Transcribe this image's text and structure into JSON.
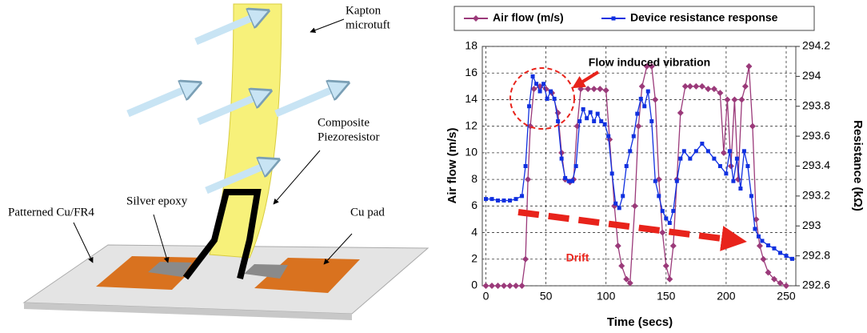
{
  "diagram": {
    "labels": [
      [
        "Kapton",
        "microtuft"
      ],
      [
        "Composite",
        "Piezoresistor"
      ],
      [
        "Patterned Cu/FR4"
      ],
      [
        "Silver epoxy"
      ],
      [
        "Cu pad"
      ]
    ]
  },
  "chart_data": {
    "type": "line",
    "x_label": "Time (secs)",
    "y_label": "Air flow (m/s)",
    "y2_label": "Resistance (kΩ)",
    "annotations": [
      "Flow induced vibration",
      "Drift"
    ],
    "xlim": [
      -3,
      258
    ],
    "xticks": [
      0,
      50,
      100,
      150,
      200,
      250
    ],
    "ylim": [
      0,
      18
    ],
    "yticks": [
      0,
      2,
      4,
      6,
      8,
      10,
      12,
      14,
      16,
      18
    ],
    "y2lim": [
      292.6,
      294.2
    ],
    "y2ticks": [
      292.6,
      292.8,
      293,
      293.2,
      293.4,
      293.6,
      293.8,
      294,
      294.2
    ],
    "grid": true,
    "legend": "top",
    "series": [
      {
        "name": "Air flow (m/s)",
        "color": "#9b3a7a",
        "marker": "diamond",
        "x": [
          0,
          5,
          10,
          15,
          20,
          25,
          30,
          33,
          35,
          37,
          40,
          45,
          50,
          55,
          60,
          63,
          66,
          70,
          73,
          76,
          79,
          85,
          90,
          95,
          100,
          103,
          107,
          110,
          113,
          117,
          120,
          124,
          127,
          130,
          134,
          138,
          141,
          144,
          147,
          150,
          153,
          156,
          159,
          162,
          166,
          170,
          175,
          180,
          185,
          190,
          195,
          198,
          201,
          204,
          207,
          210,
          213,
          216,
          219,
          222,
          225,
          228,
          231,
          235,
          240,
          245,
          250
        ],
        "values": [
          0,
          0,
          0,
          0,
          0,
          0,
          0,
          2,
          8,
          12,
          14.8,
          15,
          14.8,
          14.5,
          13,
          10,
          8,
          7.8,
          8,
          12,
          14.8,
          14.8,
          14.8,
          14.8,
          14.7,
          11,
          6,
          3,
          1.5,
          0.5,
          0.2,
          6,
          12,
          15,
          16.5,
          16.5,
          14,
          8,
          4,
          1.5,
          0.5,
          3,
          8,
          13,
          15,
          15,
          15,
          15,
          14.8,
          14.8,
          14.5,
          10,
          14,
          9,
          14,
          8,
          14,
          15,
          16.5,
          12,
          5,
          3,
          2,
          1,
          0.5,
          0.2,
          0
        ]
      },
      {
        "name": "Device resistance response",
        "color": "#1030e0",
        "marker": "square",
        "axis": "y2",
        "x": [
          0,
          5,
          10,
          15,
          20,
          25,
          30,
          33,
          36,
          39,
          42,
          45,
          48,
          51,
          54,
          57,
          60,
          63,
          66,
          69,
          72,
          75,
          78,
          81,
          84,
          87,
          90,
          93,
          96,
          99,
          102,
          105,
          108,
          111,
          114,
          117,
          120,
          123,
          126,
          129,
          132,
          135,
          138,
          141,
          144,
          147,
          150,
          153,
          156,
          159,
          162,
          165,
          170,
          175,
          180,
          185,
          190,
          195,
          200,
          203,
          206,
          209,
          212,
          215,
          218,
          221,
          224,
          227,
          230,
          235,
          240,
          245,
          250,
          255
        ],
        "values": [
          293.18,
          293.18,
          293.17,
          293.17,
          293.17,
          293.18,
          293.2,
          293.4,
          293.8,
          294.0,
          293.95,
          293.9,
          293.95,
          293.85,
          293.9,
          293.85,
          293.7,
          293.45,
          293.32,
          293.3,
          293.3,
          293.4,
          293.7,
          293.78,
          293.72,
          293.76,
          293.7,
          293.75,
          293.7,
          293.68,
          293.6,
          293.35,
          293.15,
          293.12,
          293.2,
          293.4,
          293.5,
          293.6,
          293.75,
          293.85,
          293.8,
          293.9,
          293.7,
          293.3,
          293.2,
          293.1,
          293.05,
          293.02,
          293.1,
          293.3,
          293.45,
          293.5,
          293.45,
          293.5,
          293.55,
          293.5,
          293.45,
          293.4,
          293.35,
          293.5,
          293.3,
          293.45,
          293.25,
          293.5,
          293.4,
          293.2,
          292.98,
          292.93,
          292.9,
          292.87,
          292.85,
          292.82,
          292.8,
          292.78
        ]
      }
    ]
  }
}
